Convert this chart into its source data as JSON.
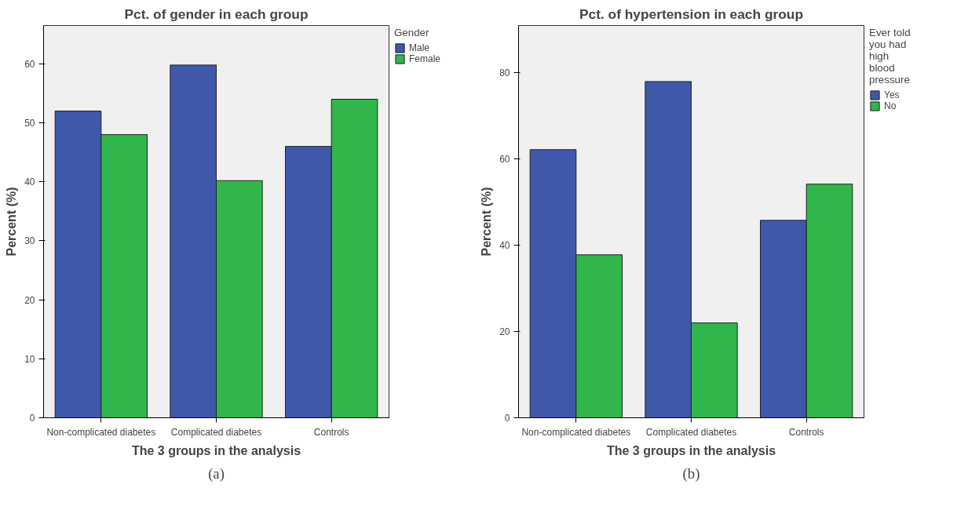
{
  "chart_data": [
    {
      "type": "bar",
      "title": "Pct. of gender in each group",
      "xlabel": "The 3 groups in the analysis",
      "ylabel": "Percent (%)",
      "legend_title": "Gender",
      "legend": "right",
      "grid": false,
      "categories": [
        "Non-complicated diabetes",
        "Complicated diabetes",
        "Controls"
      ],
      "series": [
        {
          "name": "Male",
          "color": "#3f58aa",
          "values": [
            52.0,
            59.8,
            46.0
          ]
        },
        {
          "name": "Female",
          "color": "#30b64a",
          "values": [
            48.0,
            40.2,
            54.0
          ]
        }
      ],
      "ylim": [
        0,
        66.5
      ],
      "yticks": [
        0,
        10,
        20,
        30,
        40,
        50,
        60
      ],
      "annotations": [
        "(a)"
      ]
    },
    {
      "type": "bar",
      "title": "Pct. of hypertension in each group",
      "xlabel": "The 3 groups in the analysis",
      "ylabel": "Percent (%)",
      "legend_title": "Ever told\nyou had\nhigh\nblood\npressure",
      "legend": "right",
      "grid": false,
      "categories": [
        "Non-complicated diabetes",
        "Complicated diabetes",
        "Controls"
      ],
      "series": [
        {
          "name": "Yes",
          "color": "#3f58aa",
          "values": [
            62.2,
            78.0,
            45.8
          ]
        },
        {
          "name": "No",
          "color": "#30b64a",
          "values": [
            37.8,
            22.0,
            54.2
          ]
        }
      ],
      "ylim": [
        0,
        91
      ],
      "yticks": [
        0,
        20,
        40,
        60,
        80
      ],
      "annotations": [
        "(b)"
      ]
    }
  ]
}
